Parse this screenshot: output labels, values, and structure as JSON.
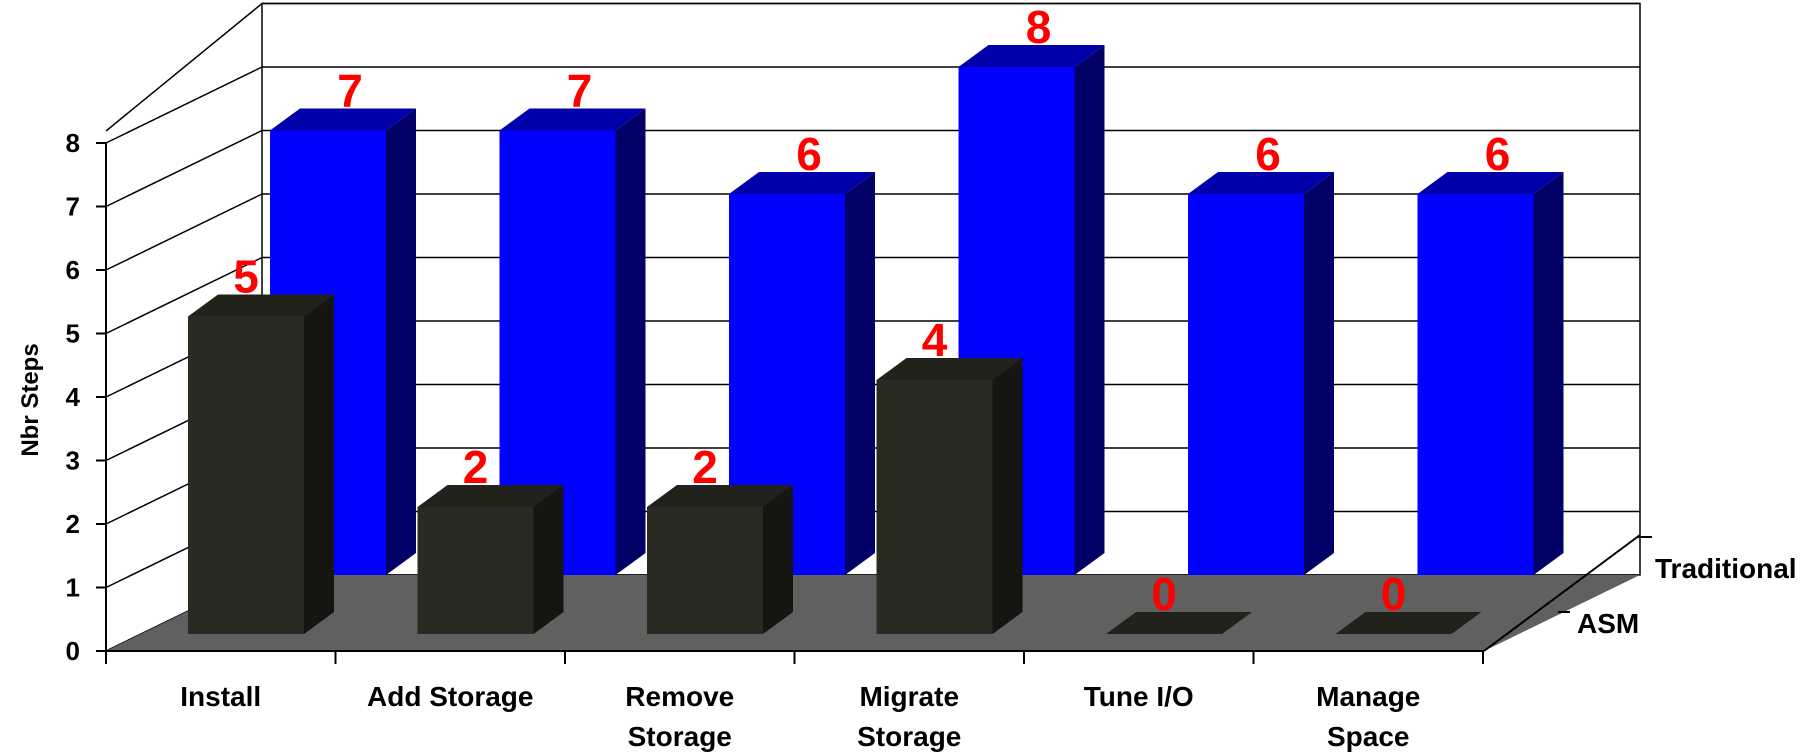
{
  "chart_data": {
    "type": "bar",
    "ylabel": "Nbr Steps",
    "ylim": [
      0,
      8
    ],
    "yticks": [
      "0",
      "1",
      "2",
      "3",
      "4",
      "5",
      "6",
      "7",
      "8"
    ],
    "categories": [
      [
        "Install"
      ],
      [
        "Add Storage"
      ],
      [
        "Remove",
        "Storage"
      ],
      [
        "Migrate",
        "Storage"
      ],
      [
        "Tune I/O"
      ],
      [
        "Manage",
        "Space"
      ]
    ],
    "series": [
      {
        "name": "ASM",
        "values": [
          5,
          2,
          2,
          4,
          0,
          0
        ]
      },
      {
        "name": "Traditional",
        "values": [
          7,
          7,
          6,
          8,
          6,
          6
        ]
      }
    ],
    "data_labels": {
      "ASM": [
        "5",
        "2",
        "2",
        "4",
        "0",
        "0"
      ],
      "Traditional": [
        "7",
        "7",
        "6",
        "8",
        "6",
        "6"
      ]
    },
    "grid": true,
    "style": "3d-clustered-depth",
    "colors": {
      "asm_front": "#2a2a22",
      "asm_side": "#151511",
      "asm_top": "#22221c",
      "trad_front": "#0000ff",
      "trad_side": "#000066",
      "trad_top": "#0000aa",
      "floor": "#606060",
      "label": "#ff0000"
    }
  }
}
